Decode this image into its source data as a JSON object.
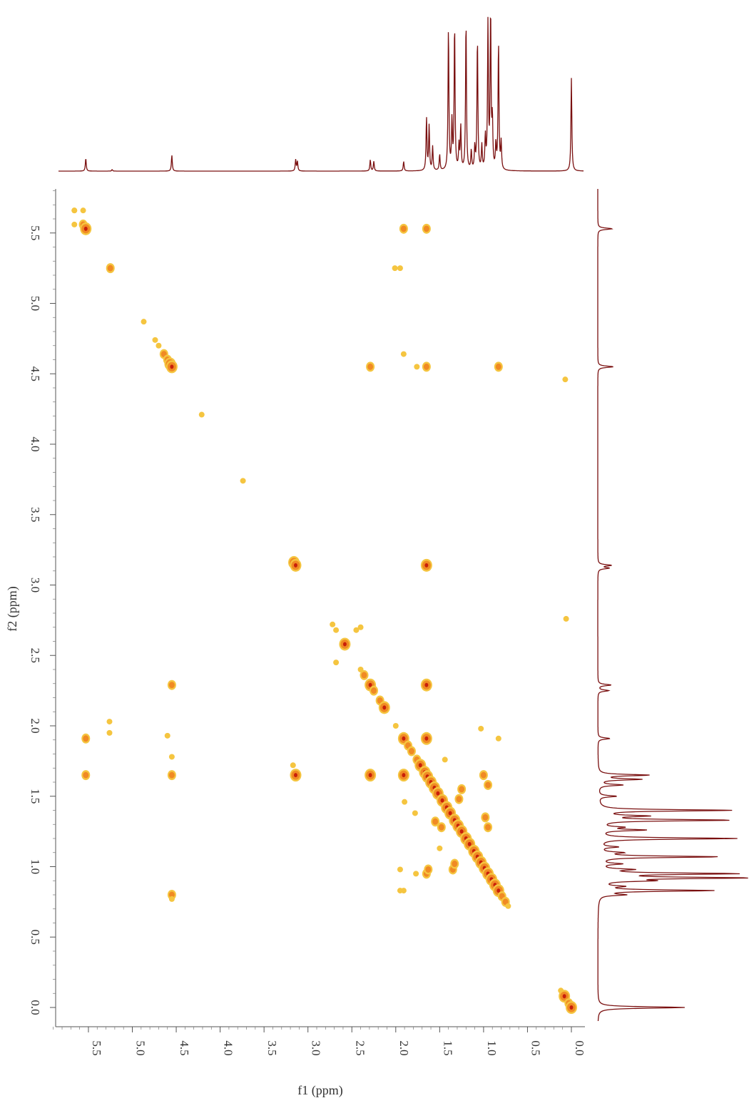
{
  "chart_data": {
    "type": "heatmap",
    "title": "",
    "xlabel": "f1 (ppm)",
    "ylabel": "f2 (ppm)",
    "x_axis_reversed": true,
    "y_axis_reversed": true,
    "xlim": [
      5.9,
      -0.1
    ],
    "ylim": [
      -0.1,
      5.85
    ],
    "x_ticks": [
      "5.5",
      "5.0",
      "4.5",
      "4.0",
      "3.5",
      "3.0",
      "2.5",
      "2.0",
      "1.5",
      "1.0",
      "0.5",
      "0.0"
    ],
    "y_ticks": [
      "0.0",
      "0.5",
      "1.0",
      "1.5",
      "2.0",
      "2.5",
      "3.0",
      "3.5",
      "4.0",
      "4.5",
      "5.0",
      "5.5"
    ],
    "colors": {
      "spectrum_line": "#7a1010",
      "peak_low": "#f5c540",
      "peak_mid": "#f08a24",
      "peak_high": "#c8200a",
      "axis": "#555555"
    },
    "projection_f1_peaks": [
      {
        "ppm": 5.53,
        "height": 0.08
      },
      {
        "ppm": 5.23,
        "height": 0.01
      },
      {
        "ppm": 4.55,
        "height": 0.1
      },
      {
        "ppm": 3.14,
        "height": 0.07
      },
      {
        "ppm": 3.12,
        "height": 0.06
      },
      {
        "ppm": 2.29,
        "height": 0.07
      },
      {
        "ppm": 2.25,
        "height": 0.06
      },
      {
        "ppm": 1.91,
        "height": 0.06
      },
      {
        "ppm": 1.65,
        "height": 0.33
      },
      {
        "ppm": 1.62,
        "height": 0.28
      },
      {
        "ppm": 1.58,
        "height": 0.15
      },
      {
        "ppm": 1.5,
        "height": 0.1
      },
      {
        "ppm": 1.4,
        "height": 0.89
      },
      {
        "ppm": 1.36,
        "height": 0.3
      },
      {
        "ppm": 1.33,
        "height": 0.91
      },
      {
        "ppm": 1.28,
        "height": 0.15
      },
      {
        "ppm": 1.26,
        "height": 0.27
      },
      {
        "ppm": 1.2,
        "height": 0.94
      },
      {
        "ppm": 1.14,
        "height": 0.12
      },
      {
        "ppm": 1.1,
        "height": 0.14
      },
      {
        "ppm": 1.07,
        "height": 0.83
      },
      {
        "ppm": 1.02,
        "height": 0.15
      },
      {
        "ppm": 0.98,
        "height": 0.2
      },
      {
        "ppm": 0.95,
        "height": 0.91
      },
      {
        "ppm": 0.92,
        "height": 0.98
      },
      {
        "ppm": 0.9,
        "height": 0.3
      },
      {
        "ppm": 0.86,
        "height": 0.15
      },
      {
        "ppm": 0.83,
        "height": 0.8
      },
      {
        "ppm": 0.8,
        "height": 0.17
      },
      {
        "ppm": 0.0,
        "height": 0.58
      }
    ],
    "projection_f2_peaks": [
      {
        "ppm": 5.53,
        "height": 0.24
      },
      {
        "ppm": 4.55,
        "height": 0.26
      },
      {
        "ppm": 3.14,
        "height": 0.22
      },
      {
        "ppm": 3.12,
        "height": 0.18
      },
      {
        "ppm": 2.29,
        "height": 0.22
      },
      {
        "ppm": 2.25,
        "height": 0.18
      },
      {
        "ppm": 1.91,
        "height": 0.2
      },
      {
        "ppm": 1.65,
        "height": 0.84
      },
      {
        "ppm": 1.62,
        "height": 0.7
      },
      {
        "ppm": 1.58,
        "height": 0.4
      },
      {
        "ppm": 1.5,
        "height": 0.3
      },
      {
        "ppm": 1.4,
        "height": 2.2
      },
      {
        "ppm": 1.36,
        "height": 0.75
      },
      {
        "ppm": 1.33,
        "height": 2.18
      },
      {
        "ppm": 1.28,
        "height": 0.35
      },
      {
        "ppm": 1.26,
        "height": 0.75
      },
      {
        "ppm": 1.2,
        "height": 2.3
      },
      {
        "ppm": 1.14,
        "height": 0.3
      },
      {
        "ppm": 1.1,
        "height": 0.35
      },
      {
        "ppm": 1.07,
        "height": 2.0
      },
      {
        "ppm": 1.02,
        "height": 0.35
      },
      {
        "ppm": 0.98,
        "height": 0.5
      },
      {
        "ppm": 0.95,
        "height": 2.25
      },
      {
        "ppm": 0.92,
        "height": 2.4
      },
      {
        "ppm": 0.9,
        "height": 0.75
      },
      {
        "ppm": 0.86,
        "height": 0.35
      },
      {
        "ppm": 0.83,
        "height": 1.9
      },
      {
        "ppm": 0.8,
        "height": 0.4
      },
      {
        "ppm": 0.0,
        "height": 1.45
      }
    ],
    "diagonal_points": [
      [
        5.66,
        5.66,
        1
      ],
      [
        5.56,
        5.56,
        2
      ],
      [
        5.53,
        5.53,
        3
      ],
      [
        5.25,
        5.25,
        2
      ],
      [
        4.87,
        4.87,
        1
      ],
      [
        4.74,
        4.74,
        1
      ],
      [
        4.7,
        4.7,
        1
      ],
      [
        4.64,
        4.64,
        2
      ],
      [
        4.6,
        4.6,
        2
      ],
      [
        4.57,
        4.57,
        3
      ],
      [
        4.55,
        4.55,
        3
      ],
      [
        4.21,
        4.21,
        1
      ],
      [
        3.74,
        3.74,
        1
      ],
      [
        3.16,
        3.16,
        3
      ],
      [
        3.14,
        3.14,
        3
      ],
      [
        2.72,
        2.72,
        1
      ],
      [
        2.68,
        2.68,
        1
      ],
      [
        2.58,
        2.58,
        3
      ],
      [
        2.4,
        2.4,
        1
      ],
      [
        2.36,
        2.36,
        2
      ],
      [
        2.29,
        2.29,
        3
      ],
      [
        2.25,
        2.25,
        2
      ],
      [
        2.18,
        2.18,
        2
      ],
      [
        2.13,
        2.13,
        3
      ],
      [
        2.0,
        2.0,
        1
      ],
      [
        1.91,
        1.91,
        3
      ],
      [
        1.86,
        1.86,
        2
      ],
      [
        1.82,
        1.82,
        2
      ],
      [
        1.76,
        1.76,
        2
      ],
      [
        1.72,
        1.72,
        3
      ],
      [
        1.67,
        1.67,
        3
      ],
      [
        1.64,
        1.64,
        3
      ],
      [
        1.6,
        1.6,
        3
      ],
      [
        1.56,
        1.56,
        3
      ],
      [
        1.52,
        1.52,
        3
      ],
      [
        1.47,
        1.47,
        3
      ],
      [
        1.42,
        1.42,
        3
      ],
      [
        1.38,
        1.38,
        3
      ],
      [
        1.33,
        1.33,
        3
      ],
      [
        1.29,
        1.29,
        3
      ],
      [
        1.25,
        1.25,
        3
      ],
      [
        1.2,
        1.2,
        3
      ],
      [
        1.16,
        1.16,
        3
      ],
      [
        1.11,
        1.11,
        3
      ],
      [
        1.07,
        1.07,
        3
      ],
      [
        1.03,
        1.03,
        3
      ],
      [
        0.99,
        0.99,
        3
      ],
      [
        0.95,
        0.95,
        3
      ],
      [
        0.91,
        0.91,
        3
      ],
      [
        0.87,
        0.87,
        3
      ],
      [
        0.83,
        0.83,
        3
      ],
      [
        0.79,
        0.79,
        2
      ],
      [
        0.75,
        0.75,
        2
      ],
      [
        0.72,
        0.72,
        1
      ],
      [
        0.12,
        0.12,
        1
      ],
      [
        0.08,
        0.08,
        3
      ],
      [
        0.03,
        0.03,
        2
      ],
      [
        0.0,
        0.0,
        3
      ]
    ],
    "cross_peaks": [
      [
        5.66,
        5.66,
        1
      ],
      [
        5.56,
        5.66,
        1
      ],
      [
        5.66,
        5.56,
        1
      ],
      [
        1.91,
        5.53,
        2
      ],
      [
        1.65,
        5.53,
        2
      ],
      [
        1.95,
        5.25,
        1
      ],
      [
        2.01,
        5.25,
        1
      ],
      [
        1.76,
        4.55,
        1
      ],
      [
        1.91,
        4.64,
        1
      ],
      [
        2.29,
        4.55,
        2
      ],
      [
        1.65,
        4.55,
        2
      ],
      [
        0.83,
        4.55,
        2
      ],
      [
        0.07,
        4.46,
        1
      ],
      [
        1.65,
        3.14,
        3
      ],
      [
        3.14,
        1.65,
        3
      ],
      [
        0.06,
        2.76,
        1
      ],
      [
        2.45,
        2.68,
        1
      ],
      [
        2.68,
        2.45,
        1
      ],
      [
        2.4,
        2.7,
        1
      ],
      [
        1.65,
        2.29,
        3
      ],
      [
        4.55,
        2.29,
        2
      ],
      [
        2.29,
        1.65,
        3
      ],
      [
        4.55,
        1.65,
        2
      ],
      [
        5.53,
        1.65,
        2
      ],
      [
        5.53,
        1.91,
        2
      ],
      [
        4.55,
        1.78,
        1
      ],
      [
        4.6,
        1.93,
        1
      ],
      [
        1.65,
        1.91,
        3
      ],
      [
        1.91,
        1.65,
        3
      ],
      [
        5.26,
        1.95,
        1
      ],
      [
        5.26,
        2.03,
        1
      ],
      [
        1.91,
        0.83,
        1
      ],
      [
        0.83,
        1.91,
        1
      ],
      [
        1.03,
        1.98,
        1
      ],
      [
        1.0,
        1.65,
        2
      ],
      [
        0.95,
        1.58,
        2
      ],
      [
        0.98,
        1.35,
        2
      ],
      [
        0.95,
        1.28,
        2
      ],
      [
        1.35,
        0.98,
        2
      ],
      [
        1.33,
        1.02,
        2
      ],
      [
        1.65,
        0.95,
        2
      ],
      [
        1.63,
        0.98,
        2
      ],
      [
        1.95,
        0.98,
        1
      ],
      [
        1.95,
        0.83,
        1
      ],
      [
        4.55,
        0.8,
        2
      ],
      [
        4.55,
        0.77,
        1
      ],
      [
        3.17,
        1.72,
        1
      ],
      [
        1.77,
        0.95,
        1
      ],
      [
        1.9,
        1.46,
        1
      ],
      [
        1.78,
        1.38,
        1
      ],
      [
        1.44,
        1.76,
        1
      ],
      [
        1.48,
        1.28,
        2
      ],
      [
        1.55,
        1.32,
        2
      ],
      [
        1.28,
        1.48,
        2
      ],
      [
        1.5,
        1.13,
        1
      ],
      [
        1.25,
        1.55,
        2
      ]
    ]
  }
}
